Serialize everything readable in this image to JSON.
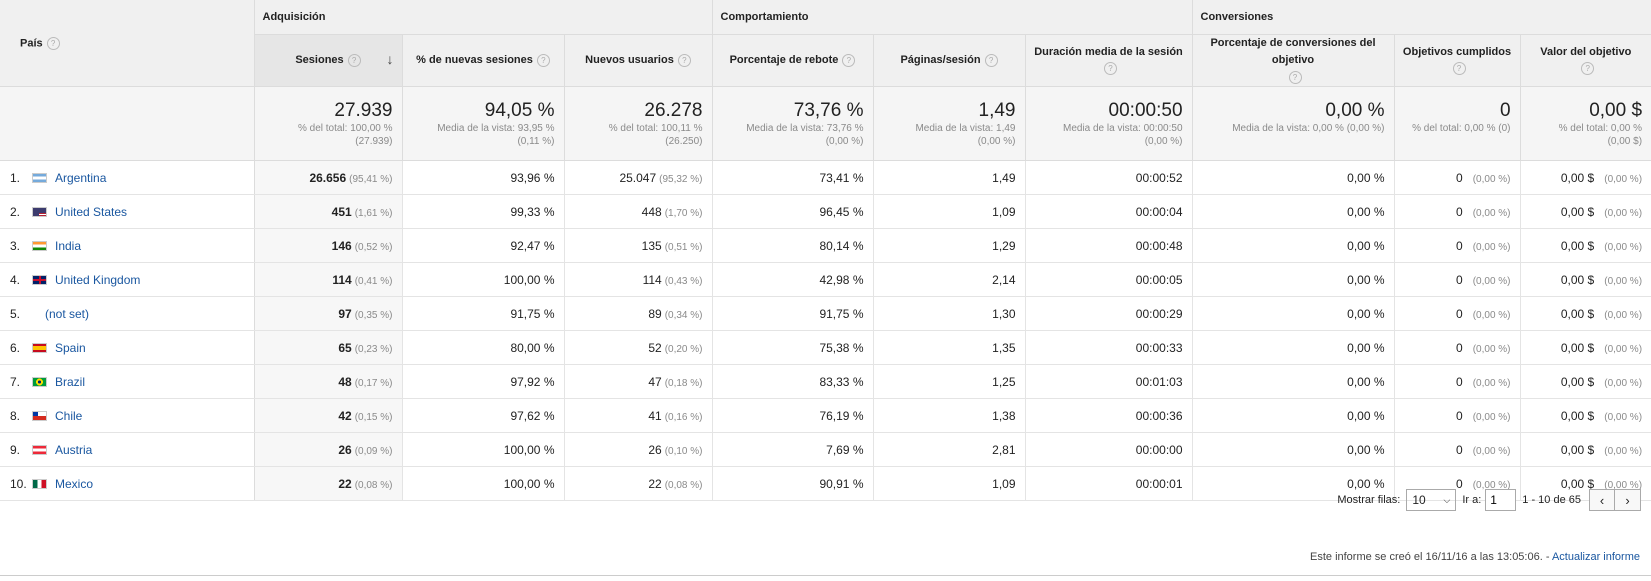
{
  "groups": {
    "pais": "País",
    "adquisicion": "Adquisición",
    "comportamiento": "Comportamiento",
    "conversiones": "Conversiones"
  },
  "columns": [
    "Sesiones",
    "% de nuevas sesiones",
    "Nuevos usuarios",
    "Porcentaje de rebote",
    "Páginas/sesión",
    "Duración media de la sesión",
    "Porcentaje de conversiones del objetivo",
    "Objetivos cumplidos",
    "Valor del objetivo"
  ],
  "help_glyph": "?",
  "sort_glyph": "↓",
  "totals": [
    {
      "value": "27.939",
      "sub1": "% del total: 100,00 %",
      "sub2": "(27.939)"
    },
    {
      "value": "94,05 %",
      "sub1": "Media de la vista: 93,95 %",
      "sub2": "(0,11 %)"
    },
    {
      "value": "26.278",
      "sub1": "% del total: 100,11 %",
      "sub2": "(26.250)"
    },
    {
      "value": "73,76 %",
      "sub1": "Media de la vista: 73,76 %",
      "sub2": "(0,00 %)"
    },
    {
      "value": "1,49",
      "sub1": "Media de la vista: 1,49",
      "sub2": "(0,00 %)"
    },
    {
      "value": "00:00:50",
      "sub1": "Media de la vista: 00:00:50",
      "sub2": "(0,00 %)"
    },
    {
      "value": "0,00 %",
      "sub1": "Media de la vista: 0,00 % (0,00 %)",
      "sub2": ""
    },
    {
      "value": "0",
      "sub1": "% del total: 0,00 % (0)",
      "sub2": ""
    },
    {
      "value": "0,00 $",
      "sub1": "% del total: 0,00 %",
      "sub2": "(0,00 $)"
    }
  ],
  "rows": [
    {
      "idx": "1.",
      "country": "Argentina",
      "flag": "ar",
      "sessions": "26.656",
      "sessions_pct": "(95,41 %)",
      "new_pct": "93,96 %",
      "new_users": "25.047",
      "new_users_pct": "(95,32 %)",
      "bounce": "73,41 %",
      "pages": "1,49",
      "duration": "00:00:52",
      "conv": "0,00 %",
      "goals": "0",
      "goals_pct": "(0,00 %)",
      "value": "0,00 $",
      "value_pct": "(0,00 %)"
    },
    {
      "idx": "2.",
      "country": "United States",
      "flag": "us",
      "sessions": "451",
      "sessions_pct": "(1,61 %)",
      "new_pct": "99,33 %",
      "new_users": "448",
      "new_users_pct": "(1,70 %)",
      "bounce": "96,45 %",
      "pages": "1,09",
      "duration": "00:00:04",
      "conv": "0,00 %",
      "goals": "0",
      "goals_pct": "(0,00 %)",
      "value": "0,00 $",
      "value_pct": "(0,00 %)"
    },
    {
      "idx": "3.",
      "country": "India",
      "flag": "in",
      "sessions": "146",
      "sessions_pct": "(0,52 %)",
      "new_pct": "92,47 %",
      "new_users": "135",
      "new_users_pct": "(0,51 %)",
      "bounce": "80,14 %",
      "pages": "1,29",
      "duration": "00:00:48",
      "conv": "0,00 %",
      "goals": "0",
      "goals_pct": "(0,00 %)",
      "value": "0,00 $",
      "value_pct": "(0,00 %)"
    },
    {
      "idx": "4.",
      "country": "United Kingdom",
      "flag": "gb",
      "sessions": "114",
      "sessions_pct": "(0,41 %)",
      "new_pct": "100,00 %",
      "new_users": "114",
      "new_users_pct": "(0,43 %)",
      "bounce": "42,98 %",
      "pages": "2,14",
      "duration": "00:00:05",
      "conv": "0,00 %",
      "goals": "0",
      "goals_pct": "(0,00 %)",
      "value": "0,00 $",
      "value_pct": "(0,00 %)"
    },
    {
      "idx": "5.",
      "country": "(not set)",
      "flag": "none",
      "sessions": "97",
      "sessions_pct": "(0,35 %)",
      "new_pct": "91,75 %",
      "new_users": "89",
      "new_users_pct": "(0,34 %)",
      "bounce": "91,75 %",
      "pages": "1,30",
      "duration": "00:00:29",
      "conv": "0,00 %",
      "goals": "0",
      "goals_pct": "(0,00 %)",
      "value": "0,00 $",
      "value_pct": "(0,00 %)"
    },
    {
      "idx": "6.",
      "country": "Spain",
      "flag": "es",
      "sessions": "65",
      "sessions_pct": "(0,23 %)",
      "new_pct": "80,00 %",
      "new_users": "52",
      "new_users_pct": "(0,20 %)",
      "bounce": "75,38 %",
      "pages": "1,35",
      "duration": "00:00:33",
      "conv": "0,00 %",
      "goals": "0",
      "goals_pct": "(0,00 %)",
      "value": "0,00 $",
      "value_pct": "(0,00 %)"
    },
    {
      "idx": "7.",
      "country": "Brazil",
      "flag": "br",
      "sessions": "48",
      "sessions_pct": "(0,17 %)",
      "new_pct": "97,92 %",
      "new_users": "47",
      "new_users_pct": "(0,18 %)",
      "bounce": "83,33 %",
      "pages": "1,25",
      "duration": "00:01:03",
      "conv": "0,00 %",
      "goals": "0",
      "goals_pct": "(0,00 %)",
      "value": "0,00 $",
      "value_pct": "(0,00 %)"
    },
    {
      "idx": "8.",
      "country": "Chile",
      "flag": "cl",
      "sessions": "42",
      "sessions_pct": "(0,15 %)",
      "new_pct": "97,62 %",
      "new_users": "41",
      "new_users_pct": "(0,16 %)",
      "bounce": "76,19 %",
      "pages": "1,38",
      "duration": "00:00:36",
      "conv": "0,00 %",
      "goals": "0",
      "goals_pct": "(0,00 %)",
      "value": "0,00 $",
      "value_pct": "(0,00 %)"
    },
    {
      "idx": "9.",
      "country": "Austria",
      "flag": "at",
      "sessions": "26",
      "sessions_pct": "(0,09 %)",
      "new_pct": "100,00 %",
      "new_users": "26",
      "new_users_pct": "(0,10 %)",
      "bounce": "7,69 %",
      "pages": "2,81",
      "duration": "00:00:00",
      "conv": "0,00 %",
      "goals": "0",
      "goals_pct": "(0,00 %)",
      "value": "0,00 $",
      "value_pct": "(0,00 %)"
    },
    {
      "idx": "10.",
      "country": "Mexico",
      "flag": "mx",
      "sessions": "22",
      "sessions_pct": "(0,08 %)",
      "new_pct": "100,00 %",
      "new_users": "22",
      "new_users_pct": "(0,08 %)",
      "bounce": "90,91 %",
      "pages": "1,09",
      "duration": "00:00:01",
      "conv": "0,00 %",
      "goals": "0",
      "goals_pct": "(0,00 %)",
      "value": "0,00 $",
      "value_pct": "(0,00 %)"
    }
  ],
  "pager": {
    "show_rows_label": "Mostrar filas:",
    "rows_value": "10",
    "goto_label": "Ir a:",
    "goto_value": "1",
    "range": "1 - 10 de 65",
    "prev": "‹",
    "next": "›"
  },
  "note": {
    "text": "Este informe se creó el 16/11/16 a las 13:05:06. - ",
    "link": "Actualizar informe"
  }
}
